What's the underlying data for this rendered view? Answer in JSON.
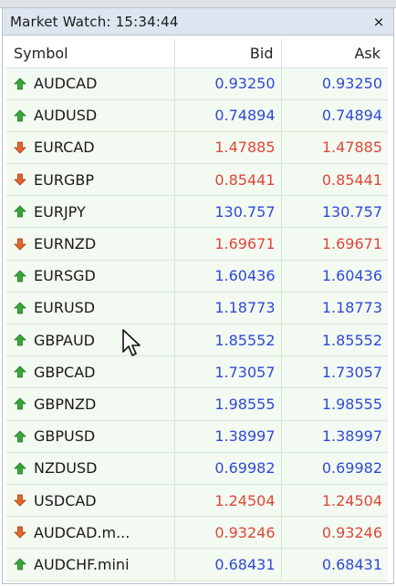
{
  "window": {
    "title": "Market Watch: 15:34:44",
    "close_label": "×"
  },
  "columns": {
    "symbol": "Symbol",
    "bid": "Bid",
    "ask": "Ask"
  },
  "colors": {
    "up_text": "#2f49d8",
    "down_text": "#e0463a",
    "up_arrow": "#3aa53a",
    "down_arrow": "#e0662a",
    "row_bg": "#f3faf1",
    "title_bg": "#dde6f0"
  },
  "rows": [
    {
      "symbol": "AUDCAD",
      "bid": "0.93250",
      "ask": "0.93250",
      "direction": "up"
    },
    {
      "symbol": "AUDUSD",
      "bid": "0.74894",
      "ask": "0.74894",
      "direction": "up"
    },
    {
      "symbol": "EURCAD",
      "bid": "1.47885",
      "ask": "1.47885",
      "direction": "down"
    },
    {
      "symbol": "EURGBP",
      "bid": "0.85441",
      "ask": "0.85441",
      "direction": "down"
    },
    {
      "symbol": "EURJPY",
      "bid": "130.757",
      "ask": "130.757",
      "direction": "up"
    },
    {
      "symbol": "EURNZD",
      "bid": "1.69671",
      "ask": "1.69671",
      "direction": "down"
    },
    {
      "symbol": "EURSGD",
      "bid": "1.60436",
      "ask": "1.60436",
      "direction": "up"
    },
    {
      "symbol": "EURUSD",
      "bid": "1.18773",
      "ask": "1.18773",
      "direction": "up"
    },
    {
      "symbol": "GBPAUD",
      "bid": "1.85552",
      "ask": "1.85552",
      "direction": "up"
    },
    {
      "symbol": "GBPCAD",
      "bid": "1.73057",
      "ask": "1.73057",
      "direction": "up"
    },
    {
      "symbol": "GBPNZD",
      "bid": "1.98555",
      "ask": "1.98555",
      "direction": "up"
    },
    {
      "symbol": "GBPUSD",
      "bid": "1.38997",
      "ask": "1.38997",
      "direction": "up"
    },
    {
      "symbol": "NZDUSD",
      "bid": "0.69982",
      "ask": "0.69982",
      "direction": "up"
    },
    {
      "symbol": "USDCAD",
      "bid": "1.24504",
      "ask": "1.24504",
      "direction": "down"
    },
    {
      "symbol": "AUDCAD.m...",
      "bid": "0.93246",
      "ask": "0.93246",
      "direction": "down"
    },
    {
      "symbol": "AUDCHF.mini",
      "bid": "0.68431",
      "ask": "0.68431",
      "direction": "up"
    }
  ]
}
